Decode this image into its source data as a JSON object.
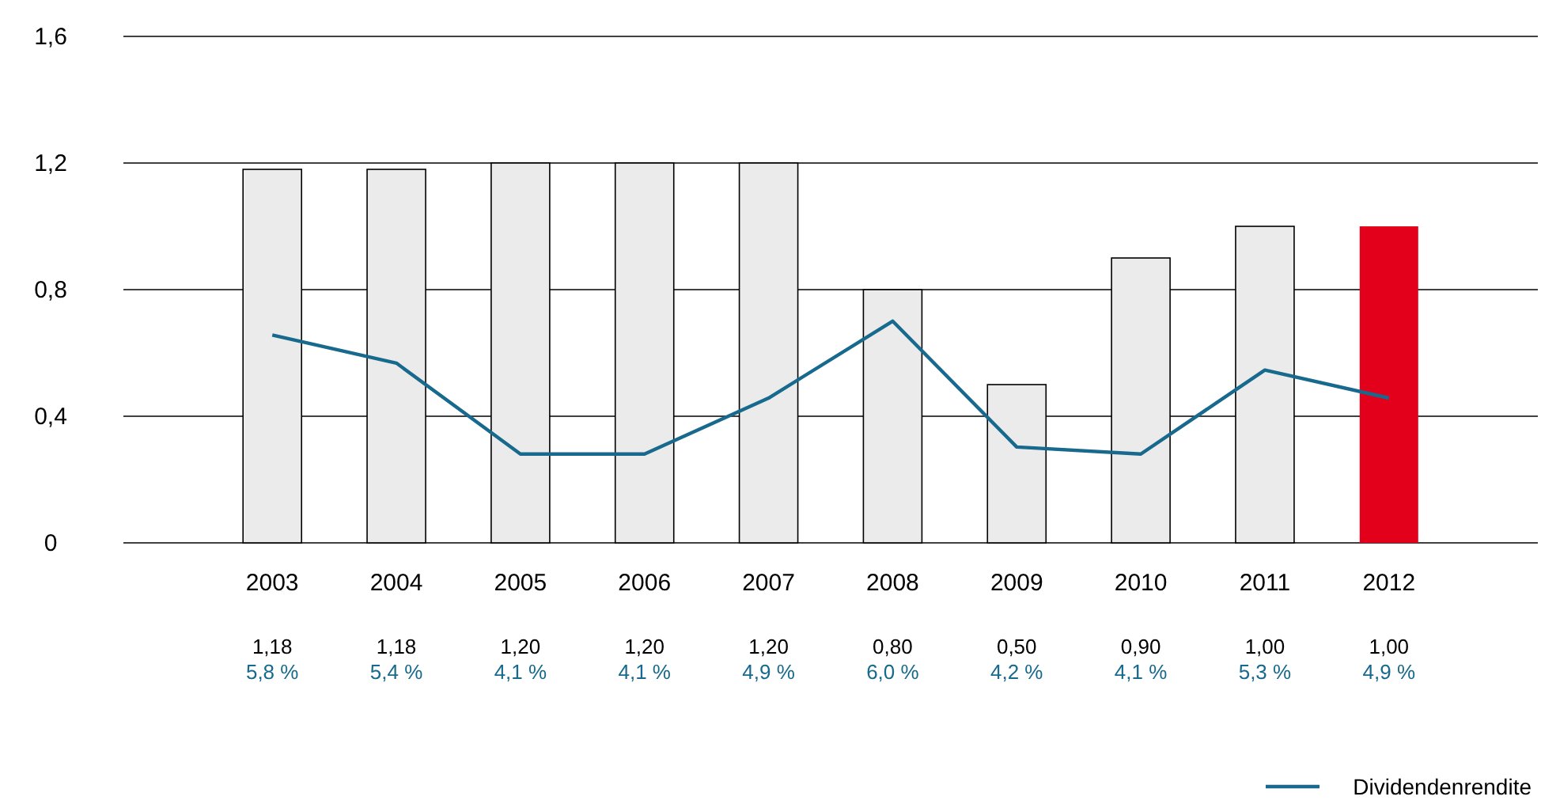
{
  "chart_data": {
    "type": "bar",
    "categories": [
      "2003",
      "2004",
      "2005",
      "2006",
      "2007",
      "2008",
      "2009",
      "2010",
      "2011",
      "2012"
    ],
    "series": [
      {
        "colors": [
          "#ebebeb",
          "#ebebeb",
          "#ebebeb",
          "#ebebeb",
          "#ebebeb",
          "#ebebeb",
          "#ebebeb",
          "#ebebeb",
          "#ebebeb",
          "#e2001a"
        ],
        "values": [
          1.18,
          1.18,
          1.2,
          1.2,
          1.2,
          0.8,
          0.5,
          0.9,
          1.0,
          1.0
        ],
        "value_labels": [
          "1,18",
          "1,18",
          "1,20",
          "1,20",
          "1,20",
          "0,80",
          "0,50",
          "0,90",
          "1,00",
          "1,00"
        ]
      },
      {
        "type": "line",
        "name": "Dividendenrendite",
        "color": "#17698d",
        "axis": "y2",
        "values": [
          5.8,
          5.4,
          4.1,
          4.1,
          4.9,
          6.0,
          4.2,
          4.1,
          5.3,
          4.9
        ],
        "value_labels": [
          "5,8 %",
          "5,4 %",
          "4,1 %",
          "4,1 %",
          "4,9 %",
          "6,0 %",
          "4,2 %",
          "4,1 %",
          "5,3 %",
          "4,9 %"
        ]
      }
    ],
    "ylim": [
      0,
      1.6
    ],
    "yticks": [
      0,
      {
        "value": 0.4,
        "label": "0,4"
      },
      {
        "value": 0.8,
        "label": "0,8"
      },
      {
        "value": 1.2,
        "label": "1,2"
      },
      {
        "value": 1.6,
        "label": "1,6"
      }
    ],
    "y2lim": [
      2.83,
      10.07
    ],
    "grid": "y",
    "legend": "bottom right",
    "marker": "none"
  }
}
